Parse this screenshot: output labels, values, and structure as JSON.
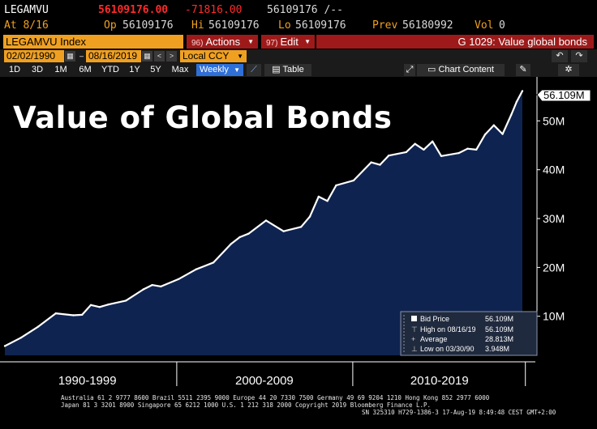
{
  "quote": {
    "ticker": "LEGAMVU",
    "last": "56109176.00",
    "change": "-71816.00",
    "bid_ask": "56109176 /--",
    "at_label": "At 8/16",
    "open_label": "Op",
    "open": "56109176",
    "high_label": "Hi",
    "high": "56109176",
    "low_label": "Lo",
    "low": "56109176",
    "prev_label": "Prev",
    "prev": "56180992",
    "vol_label": "Vol",
    "vol": "0"
  },
  "function_bar": {
    "security": "LEGAMVU Index",
    "actions_num": "96)",
    "actions_label": "Actions",
    "edit_num": "97)",
    "edit_label": "Edit",
    "title": "G 1029: Value global bonds"
  },
  "date_bar": {
    "start_date": "02/02/1990",
    "end_date": "08/16/2019",
    "currency": "Local CCY",
    "undo_icon": "↶",
    "redo_icon": "↷"
  },
  "period_bar": {
    "periods": [
      "1D",
      "3D",
      "1M",
      "6M",
      "YTD",
      "1Y",
      "5Y",
      "Max"
    ],
    "frequency": "Weekly",
    "table_label": "Table",
    "chart_content_label": "Chart Content"
  },
  "chart_data": {
    "type": "area",
    "title": "Value of Global Bonds",
    "current_label": "56.109M",
    "x_labels": [
      "1990-1999",
      "2000-2009",
      "2010-2019"
    ],
    "y_ticks": [
      10,
      20,
      30,
      40,
      50
    ],
    "y_tick_labels": [
      "10M",
      "20M",
      "30M",
      "40M",
      "50M"
    ],
    "ylim": [
      2,
      59
    ],
    "xlim": [
      1990.09,
      2019.63
    ],
    "series": [
      {
        "name": "Bid Price",
        "x": [
          1990.09,
          1991.0,
          1992.0,
          1993.0,
          1994.0,
          1994.5,
          1995.0,
          1995.5,
          1996.0,
          1997.0,
          1998.0,
          1998.5,
          1999.0,
          2000.0,
          2001.0,
          2002.0,
          2003.0,
          2003.5,
          2004.0,
          2005.0,
          2006.0,
          2007.0,
          2007.5,
          2008.0,
          2008.5,
          2009.0,
          2010.0,
          2011.0,
          2011.5,
          2012.0,
          2013.0,
          2013.5,
          2014.0,
          2014.5,
          2015.0,
          2016.0,
          2016.5,
          2017.0,
          2017.5,
          2018.0,
          2018.5,
          2019.0,
          2019.3,
          2019.63
        ],
        "values": [
          3.9,
          5.6,
          7.9,
          10.6,
          10.2,
          10.3,
          12.3,
          11.9,
          12.4,
          13.2,
          15.5,
          16.4,
          16.1,
          17.6,
          19.6,
          21.0,
          24.8,
          26.2,
          26.9,
          29.6,
          27.4,
          28.3,
          30.4,
          34.5,
          33.6,
          36.8,
          37.8,
          41.5,
          41.0,
          42.9,
          43.6,
          45.3,
          44.1,
          45.8,
          42.8,
          43.4,
          44.3,
          44.1,
          47.2,
          49.1,
          47.3,
          51.3,
          53.9,
          56.109
        ]
      }
    ],
    "legend": {
      "bid_price_label": "Bid Price",
      "bid_price_value": "56.109M",
      "high_label": "High on 08/16/19",
      "high_value": "56.109M",
      "average_label": "Average",
      "average_value": "28.813M",
      "low_label": "Low on 03/30/90",
      "low_value": "3.948M",
      "placement": "bottom-right"
    },
    "grid": false
  },
  "footer": {
    "line1": "Australia 61 2 9777 8600 Brazil 5511 2395 9000 Europe 44 20 7330 7500 Germany 49 69 9204 1210 Hong Kong 852 2977 6000",
    "line2": "Japan 81 3 3201 8900        Singapore 65 6212 1000        U.S. 1 212 318 2000        Copyright 2019 Bloomberg Finance L.P.",
    "line3": "SN 325310 H729-1386-3 17-Aug-19  8:49:48 CEST GMT+2:00"
  },
  "colors": {
    "area_fill": "#0e2350",
    "line": "#ffffff",
    "amber": "#f0a020",
    "menu_red": "#9e1a1a",
    "price_red": "#ff2a2a"
  }
}
